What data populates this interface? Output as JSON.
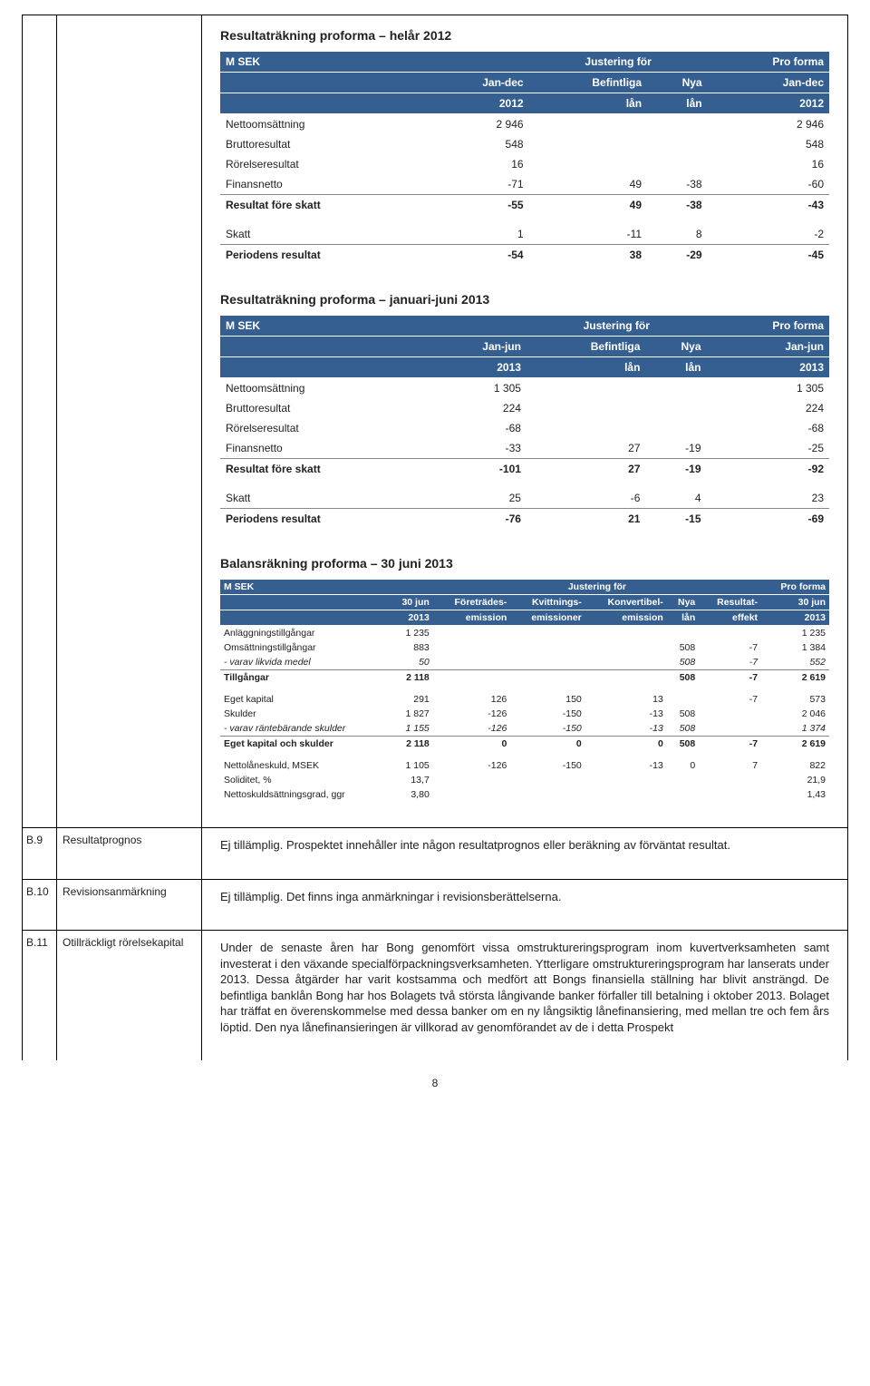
{
  "colors": {
    "accent": "#365f91",
    "accent_text": "#ffffff",
    "border": "#000000",
    "row_border": "#888888"
  },
  "pagenum": "8",
  "block1": {
    "title": "Resultaträkning proforma – helår 2012",
    "hdr1": {
      "c0": "M SEK",
      "c1": "",
      "c23": "Justering för",
      "c4": "Pro forma"
    },
    "hdr2": {
      "c0": "",
      "c1": "Jan-dec",
      "c2": "Befintliga",
      "c3": "Nya",
      "c4": "Jan-dec"
    },
    "hdr3": {
      "c0": "",
      "c1": "2012",
      "c2": "lån",
      "c3": "lån",
      "c4": "2012"
    },
    "rows": [
      {
        "label": "Nettoomsättning",
        "c1": "2 946",
        "c2": "",
        "c3": "",
        "c4": "2 946"
      },
      {
        "label": "Bruttoresultat",
        "c1": "548",
        "c2": "",
        "c3": "",
        "c4": "548"
      },
      {
        "label": "Rörelseresultat",
        "c1": "16",
        "c2": "",
        "c3": "",
        "c4": "16"
      },
      {
        "label": "Finansnetto",
        "c1": "-71",
        "c2": "49",
        "c3": "-38",
        "c4": "-60"
      }
    ],
    "sum1": {
      "label": "Resultat före skatt",
      "c1": "-55",
      "c2": "49",
      "c3": "-38",
      "c4": "-43"
    },
    "rows2": [
      {
        "label": "Skatt",
        "c1": "1",
        "c2": "-11",
        "c3": "8",
        "c4": "-2"
      }
    ],
    "sum2": {
      "label": "Periodens resultat",
      "c1": "-54",
      "c2": "38",
      "c3": "-29",
      "c4": "-45"
    }
  },
  "block2": {
    "title": "Resultaträkning proforma – januari-juni 2013",
    "hdr1": {
      "c0": "M SEK",
      "c1": "",
      "c23": "Justering för",
      "c4": "Pro forma"
    },
    "hdr2": {
      "c0": "",
      "c1": "Jan-jun",
      "c2": "Befintliga",
      "c3": "Nya",
      "c4": "Jan-jun"
    },
    "hdr3": {
      "c0": "",
      "c1": "2013",
      "c2": "lån",
      "c3": "lån",
      "c4": "2013"
    },
    "rows": [
      {
        "label": "Nettoomsättning",
        "c1": "1 305",
        "c2": "",
        "c3": "",
        "c4": "1 305"
      },
      {
        "label": "Bruttoresultat",
        "c1": "224",
        "c2": "",
        "c3": "",
        "c4": "224"
      },
      {
        "label": "Rörelseresultat",
        "c1": "-68",
        "c2": "",
        "c3": "",
        "c4": "-68"
      },
      {
        "label": "Finansnetto",
        "c1": "-33",
        "c2": "27",
        "c3": "-19",
        "c4": "-25"
      }
    ],
    "sum1": {
      "label": "Resultat före skatt",
      "c1": "-101",
      "c2": "27",
      "c3": "-19",
      "c4": "-92"
    },
    "rows2": [
      {
        "label": "Skatt",
        "c1": "25",
        "c2": "-6",
        "c3": "4",
        "c4": "23"
      }
    ],
    "sum2": {
      "label": "Periodens resultat",
      "c1": "-76",
      "c2": "21",
      "c3": "-15",
      "c4": "-69"
    }
  },
  "block3": {
    "title": "Balansräkning proforma – 30 juni 2013",
    "hdr1": {
      "c0": "M SEK",
      "span": "Justering för",
      "last": "Pro forma"
    },
    "hdr2": {
      "c0": "",
      "c1": "30 jun",
      "c2": "Företrädes-",
      "c3": "Kvittnings-",
      "c4": "Konvertibel-",
      "c5": "Nya",
      "c6": "Resultat-",
      "c7": "30 jun"
    },
    "hdr3": {
      "c0": "",
      "c1": "2013",
      "c2": "emission",
      "c3": "emissioner",
      "c4": "emission",
      "c5": "lån",
      "c6": "effekt",
      "c7": "2013"
    },
    "rows1": [
      {
        "label": "Anläggningstillgångar",
        "c1": "1 235",
        "c2": "",
        "c3": "",
        "c4": "",
        "c5": "",
        "c6": "",
        "c7": "1 235"
      },
      {
        "label": "Omsättningstillgångar",
        "c1": "883",
        "c2": "",
        "c3": "",
        "c4": "",
        "c5": "508",
        "c6": "-7",
        "c7": "1 384"
      },
      {
        "label": "- varav likvida medel",
        "c1": "50",
        "c2": "",
        "c3": "",
        "c4": "",
        "c5": "508",
        "c6": "-7",
        "c7": "552",
        "italic": true
      }
    ],
    "sum1": {
      "label": "Tillgångar",
      "c1": "2 118",
      "c2": "",
      "c3": "",
      "c4": "",
      "c5": "508",
      "c6": "-7",
      "c7": "2 619"
    },
    "rows2": [
      {
        "label": "Eget kapital",
        "c1": "291",
        "c2": "126",
        "c3": "150",
        "c4": "13",
        "c5": "",
        "c6": "-7",
        "c7": "573"
      },
      {
        "label": "Skulder",
        "c1": "1 827",
        "c2": "-126",
        "c3": "-150",
        "c4": "-13",
        "c5": "508",
        "c6": "",
        "c7": "2 046"
      },
      {
        "label": "- varav räntebärande skulder",
        "c1": "1 155",
        "c2": "-126",
        "c3": "-150",
        "c4": "-13",
        "c5": "508",
        "c6": "",
        "c7": "1 374",
        "italic": true
      }
    ],
    "sum2": {
      "label": "Eget kapital och skulder",
      "c1": "2 118",
      "c2": "0",
      "c3": "0",
      "c4": "0",
      "c5": "508",
      "c6": "-7",
      "c7": "2 619"
    },
    "rows3": [
      {
        "label": "Nettolåneskuld, MSEK",
        "c1": "1 105",
        "c2": "-126",
        "c3": "-150",
        "c4": "-13",
        "c5": "0",
        "c6": "7",
        "c7": "822"
      },
      {
        "label": "Soliditet, %",
        "c1": "13,7",
        "c2": "",
        "c3": "",
        "c4": "",
        "c5": "",
        "c6": "",
        "c7": "21,9"
      },
      {
        "label": "Nettoskuldsättningsgrad, ggr",
        "c1": "3,80",
        "c2": "",
        "c3": "",
        "c4": "",
        "c5": "",
        "c6": "",
        "c7": "1,43"
      }
    ]
  },
  "b9": {
    "label": "B.9",
    "title": "Resultatprognos",
    "text": "Ej tillämplig. Prospektet innehåller inte någon resultatprognos eller beräkning av förväntat resultat."
  },
  "b10": {
    "label": "B.10",
    "title": "Revisionsanmärkning",
    "text": "Ej tillämplig. Det finns inga anmärkningar i revisionsberättelserna."
  },
  "b11": {
    "label": "B.11",
    "title": "Otillräckligt rörelsekapital",
    "text": "Under de senaste åren har Bong genomfört vissa omstruktureringsprogram inom kuvertverksamheten samt investerat i den växande specialförpacknings­verksamheten. Ytterligare omstruktureringsprogram har lanserats under 2013. Dessa åtgärder har varit kostsamma och medfört att Bongs finansiella ställning har blivit ansträngd. De befintliga banklån Bong har hos Bolagets två största långivande banker förfaller till betalning i oktober 2013. Bolaget har träffat en överenskommelse med dessa banker om en ny långsiktig lånefinansiering, med mellan tre och fem års löptid. Den nya lånefinansieringen är villkorad av genomförandet av de i detta Prospekt"
  }
}
